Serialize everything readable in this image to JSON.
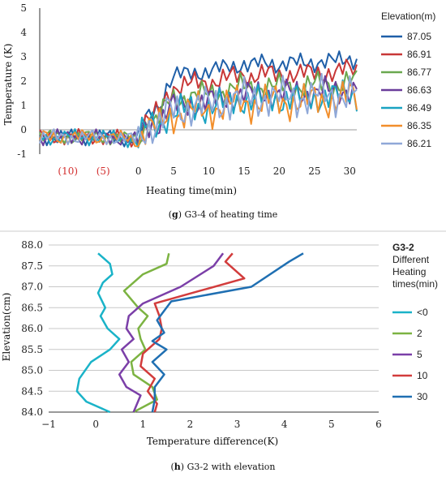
{
  "chart_data": [
    {
      "type": "line",
      "panel": "g",
      "ylabel": "Temperature (K)",
      "xlabel": "Heating time(min)",
      "ylim": [
        -1,
        5
      ],
      "xlim": [
        -14,
        31
      ],
      "y_ticks": [
        "5",
        "4",
        "3",
        "2",
        "1",
        "0",
        "-1"
      ],
      "x_ticks": [
        {
          "label": "(10)",
          "value": -10,
          "color": "#d32f2f"
        },
        {
          "label": "(5)",
          "value": -5,
          "color": "#d32f2f"
        },
        {
          "label": "0",
          "value": 0,
          "color": "#222222"
        },
        {
          "label": "5",
          "value": 5,
          "color": "#222222"
        },
        {
          "label": "10",
          "value": 10,
          "color": "#222222"
        },
        {
          "label": "15",
          "value": 15,
          "color": "#222222"
        },
        {
          "label": "20",
          "value": 20,
          "color": "#222222"
        },
        {
          "label": "25",
          "value": 25,
          "color": "#222222"
        },
        {
          "label": "30",
          "value": 30,
          "color": "#222222"
        }
      ],
      "legend_title": "Elevation(m)",
      "legend_placement": "right",
      "grid": false,
      "caption_tag": "g",
      "caption_text": "G3-4 of heating time",
      "series": [
        {
          "name": "87.05",
          "color": "#1f5fa8",
          "level": 1.9
        },
        {
          "name": "86.91",
          "color": "#c83737",
          "level": 1.45
        },
        {
          "name": "86.77",
          "color": "#6aa84f",
          "level": 0.95
        },
        {
          "name": "86.63",
          "color": "#6a3d9a",
          "level": 0.65
        },
        {
          "name": "86.49",
          "color": "#1aa3c2",
          "level": 0.45
        },
        {
          "name": "86.35",
          "color": "#f28e2b",
          "level": 0.32
        },
        {
          "name": "86.21",
          "color": "#8fa8d8",
          "level": 0.5
        }
      ],
      "mean_points": [
        [
          -14,
          -0.3
        ],
        [
          -10,
          -0.3
        ],
        [
          -5,
          -0.3
        ],
        [
          0,
          -0.4
        ],
        [
          1,
          0.15
        ],
        [
          3,
          0.3
        ],
        [
          4,
          0.8
        ],
        [
          5,
          1.0
        ],
        [
          8,
          1.15
        ],
        [
          10,
          1.2
        ],
        [
          13,
          1.4
        ],
        [
          15,
          1.5
        ],
        [
          16,
          1.45
        ],
        [
          18,
          1.55
        ],
        [
          20,
          1.5
        ],
        [
          23,
          1.55
        ],
        [
          26,
          1.6
        ],
        [
          28,
          1.6
        ],
        [
          30,
          1.75
        ],
        [
          31,
          1.7
        ]
      ]
    },
    {
      "type": "line",
      "panel": "h",
      "title": "G3-2",
      "xlabel": "Temperature difference(K)",
      "ylabel": "Elevation(cm)",
      "xlim": [
        -1,
        6
      ],
      "ylim": [
        84.0,
        88.0
      ],
      "x_ticks": [
        "−1",
        "0",
        "1",
        "2",
        "3",
        "4",
        "5",
        "6"
      ],
      "y_ticks": [
        "88.0",
        "87.5",
        "87.0",
        "86.5",
        "86.0",
        "85.5",
        "85.0",
        "84.5",
        "84.0"
      ],
      "grid": true,
      "legend_title_bold": "G3-2",
      "legend_title_lines": [
        "Different",
        "Heating",
        "times(min)"
      ],
      "legend_placement": "right",
      "caption_tag": "h",
      "caption_text": "G3-2 with elevation",
      "series": [
        {
          "name": "<0",
          "color": "#1ab3c8",
          "points": [
            [
              0.05,
              87.8
            ],
            [
              0.3,
              87.55
            ],
            [
              0.35,
              87.3
            ],
            [
              0.15,
              87.1
            ],
            [
              0.05,
              86.85
            ],
            [
              0.2,
              86.5
            ],
            [
              0.1,
              86.3
            ],
            [
              0.25,
              86.0
            ],
            [
              0.5,
              85.75
            ],
            [
              0.3,
              85.5
            ],
            [
              -0.1,
              85.2
            ],
            [
              -0.35,
              84.8
            ],
            [
              -0.4,
              84.5
            ],
            [
              -0.2,
              84.25
            ],
            [
              0.3,
              84.0
            ]
          ]
        },
        {
          "name": "2",
          "color": "#7cb342",
          "points": [
            [
              1.55,
              87.8
            ],
            [
              1.5,
              87.55
            ],
            [
              1.0,
              87.3
            ],
            [
              0.6,
              86.9
            ],
            [
              0.9,
              86.5
            ],
            [
              1.1,
              86.3
            ],
            [
              0.9,
              86.0
            ],
            [
              0.95,
              85.75
            ],
            [
              1.05,
              85.5
            ],
            [
              0.75,
              85.2
            ],
            [
              0.8,
              84.9
            ],
            [
              1.2,
              84.6
            ],
            [
              1.3,
              84.3
            ],
            [
              0.8,
              84.0
            ]
          ]
        },
        {
          "name": "5",
          "color": "#7b3fa8",
          "points": [
            [
              2.7,
              87.8
            ],
            [
              2.5,
              87.5
            ],
            [
              1.8,
              87.0
            ],
            [
              1.0,
              86.6
            ],
            [
              0.7,
              86.3
            ],
            [
              0.65,
              86.0
            ],
            [
              0.8,
              85.75
            ],
            [
              0.55,
              85.5
            ],
            [
              0.7,
              85.2
            ],
            [
              0.5,
              84.9
            ],
            [
              0.65,
              84.6
            ],
            [
              0.95,
              84.4
            ],
            [
              0.8,
              84.0
            ]
          ]
        },
        {
          "name": "10",
          "color": "#d23c3c",
          "points": [
            [
              2.9,
              87.8
            ],
            [
              2.75,
              87.6
            ],
            [
              3.15,
              87.2
            ],
            [
              2.2,
              86.9
            ],
            [
              1.25,
              86.6
            ],
            [
              1.35,
              86.3
            ],
            [
              1.4,
              86.0
            ],
            [
              1.35,
              85.75
            ],
            [
              1.0,
              85.4
            ],
            [
              0.95,
              85.1
            ],
            [
              1.25,
              84.8
            ],
            [
              1.1,
              84.5
            ],
            [
              1.3,
              84.2
            ],
            [
              1.25,
              84.0
            ]
          ]
        },
        {
          "name": "30",
          "color": "#1f6fb2",
          "points": [
            [
              4.4,
              87.8
            ],
            [
              4.1,
              87.6
            ],
            [
              3.3,
              87.0
            ],
            [
              1.6,
              86.65
            ],
            [
              1.3,
              86.2
            ],
            [
              1.45,
              85.9
            ],
            [
              1.2,
              85.7
            ],
            [
              1.5,
              85.5
            ],
            [
              1.2,
              85.2
            ],
            [
              1.45,
              84.9
            ],
            [
              1.25,
              84.6
            ],
            [
              1.25,
              84.3
            ],
            [
              1.2,
              84.0
            ]
          ]
        }
      ]
    }
  ]
}
